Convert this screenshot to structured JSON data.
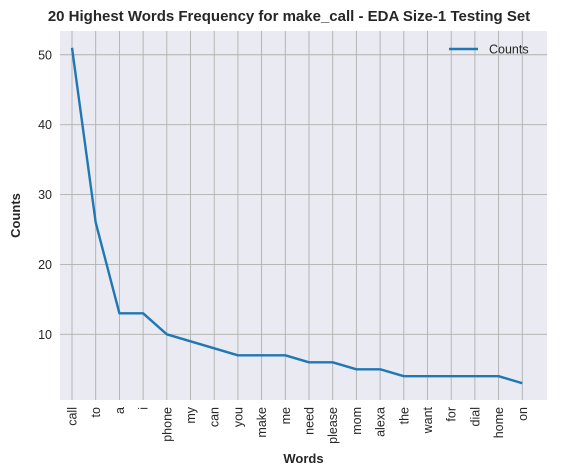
{
  "chart_data": {
    "type": "line",
    "title": "20 Highest Words Frequency for make_call - EDA Size-1 Testing Set",
    "xlabel": "Words",
    "ylabel": "Counts",
    "categories": [
      "call",
      "to",
      "a",
      "i",
      "phone",
      "my",
      "can",
      "you",
      "make",
      "me",
      "need",
      "please",
      "mom",
      "alexa",
      "the",
      "want",
      "for",
      "dial",
      "home",
      "on"
    ],
    "series": [
      {
        "name": "Counts",
        "values": [
          51,
          26,
          13,
          13,
          10,
          9,
          8,
          7,
          7,
          7,
          6,
          6,
          5,
          5,
          4,
          4,
          4,
          4,
          4,
          3
        ]
      }
    ],
    "y_ticks": [
      10,
      20,
      30,
      40,
      50
    ],
    "ylim": [
      0.6,
      53.4
    ],
    "grid": true,
    "legend_position": "top-right",
    "colors": {
      "line": "#1f77b4",
      "plot_background": "#eaeaf2",
      "grid": "#b0b0b0"
    }
  }
}
